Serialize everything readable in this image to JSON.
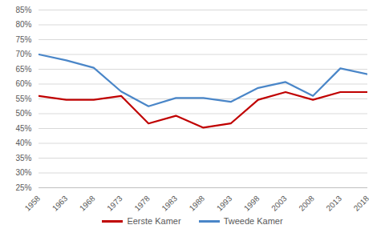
{
  "chart_data": {
    "type": "line",
    "x": [
      1958,
      1963,
      1968,
      1973,
      1978,
      1983,
      1988,
      1993,
      1998,
      2003,
      2008,
      2013,
      2018
    ],
    "series": [
      {
        "name": "Eerste Kamer",
        "color": "#C00000",
        "values": [
          56,
          54.7,
          54.7,
          56,
          46.7,
          49.3,
          45.3,
          46.7,
          54.7,
          57.3,
          54.7,
          57.3,
          57.3
        ]
      },
      {
        "name": "Tweede Kamer",
        "color": "#4A86C8",
        "values": [
          70,
          68,
          65.5,
          57.5,
          52.5,
          55.3,
          55.3,
          54,
          58.7,
          60.7,
          56,
          65.3,
          63.3
        ]
      }
    ],
    "xlim": [
      1958,
      2018
    ],
    "xticks": [
      1958,
      1963,
      1968,
      1973,
      1978,
      1983,
      1988,
      1993,
      1998,
      2003,
      2008,
      2013,
      2018
    ],
    "ylim": [
      25,
      85
    ],
    "yticks": [
      {
        "value": 25,
        "label": "25%"
      },
      {
        "value": 30,
        "label": "30%"
      },
      {
        "value": 35,
        "label": "35%"
      },
      {
        "value": 40,
        "label": "40%"
      },
      {
        "value": 45,
        "label": "45%"
      },
      {
        "value": 50,
        "label": "50%"
      },
      {
        "value": 55,
        "label": "55%"
      },
      {
        "value": 60,
        "label": "60%"
      },
      {
        "value": 65,
        "label": "65%"
      },
      {
        "value": 70,
        "label": "70%"
      },
      {
        "value": 75,
        "label": "75%"
      },
      {
        "value": 80,
        "label": "80%"
      },
      {
        "value": 85,
        "label": "85%"
      }
    ],
    "grid": true,
    "legend": "bottom"
  }
}
